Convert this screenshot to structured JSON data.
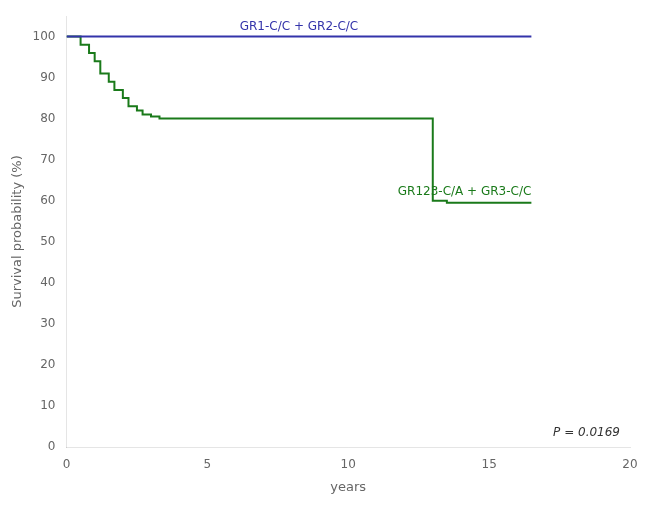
{
  "chart_data": {
    "type": "line",
    "xlabel": "years",
    "ylabel": "Survival probability (%)",
    "series": [
      {
        "name": "GR1-C/C + GR2-C/C",
        "color": "#3333aa",
        "x": [
          0,
          16.5
        ],
        "values": [
          100,
          100
        ]
      },
      {
        "name": "GR123-C/A + GR3-C/C",
        "color": "#1a7a1a",
        "x": [
          0,
          0.5,
          0.5,
          0.8,
          0.8,
          1.0,
          1.0,
          1.2,
          1.2,
          1.5,
          1.5,
          1.7,
          1.7,
          2.0,
          2.0,
          2.2,
          2.2,
          2.5,
          2.5,
          2.7,
          2.7,
          3.0,
          3.0,
          3.3,
          3.3,
          3.7,
          3.7,
          4.0,
          4.0,
          13.0,
          13.0,
          13.5,
          13.5,
          16.5
        ],
        "values": [
          100,
          100,
          98,
          98,
          96,
          96,
          94,
          94,
          91,
          91,
          89,
          89,
          87,
          87,
          85,
          85,
          83,
          83,
          82,
          82,
          81,
          81,
          80.5,
          80.5,
          80,
          80,
          80,
          80,
          80,
          80,
          60,
          60,
          59.5,
          59.5
        ]
      }
    ],
    "xlim": [
      0,
      20
    ],
    "xticks": [
      0,
      5,
      10,
      15,
      20
    ],
    "ylim": [
      0,
      105
    ],
    "yticks": [
      0,
      10,
      20,
      30,
      40,
      50,
      60,
      70,
      80,
      90,
      100
    ],
    "grid": false,
    "annotations": [
      "P = 0.0169"
    ]
  }
}
